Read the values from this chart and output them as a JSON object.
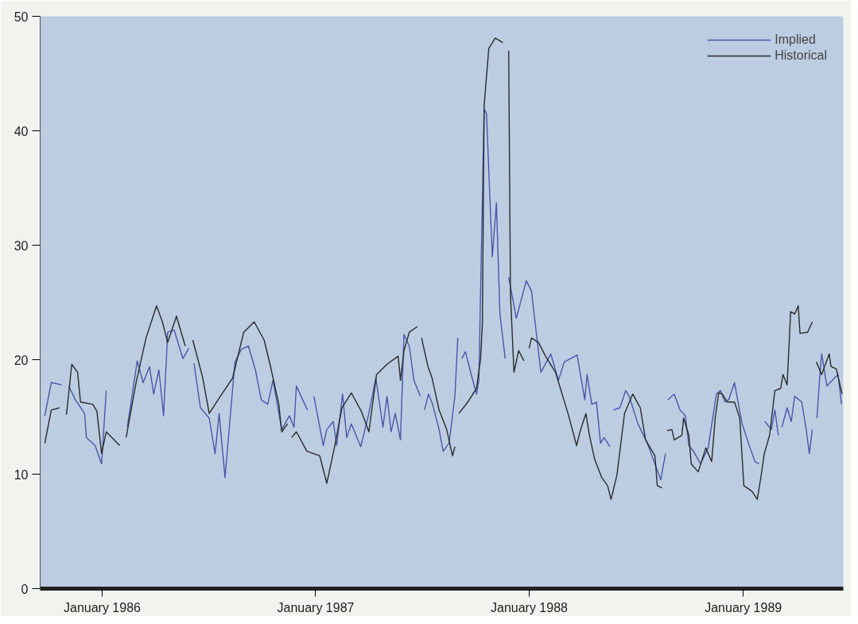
{
  "chart_data": {
    "type": "line",
    "xlim": [
      "1985-09-17",
      "1989-06-21"
    ],
    "ylim": [
      0,
      50
    ],
    "xticks": [
      {
        "value": "1986-01-01",
        "label": "January 1986"
      },
      {
        "value": "1987-01-01",
        "label": "January 1987"
      },
      {
        "value": "1988-01-01",
        "label": "January 1988"
      },
      {
        "value": "1989-01-01",
        "label": "January 1989"
      }
    ],
    "yticks": [
      0,
      10,
      20,
      30,
      40,
      50
    ],
    "grid": false,
    "legend": "top right",
    "marker": "none",
    "line_style": "solid",
    "series": [
      {
        "name": "Implied",
        "color": "#4a55a8",
        "x": [
          "1985-09-25",
          "1985-10-06",
          "1985-10-24",
          "1985-10-27",
          "1985-11-05",
          "1985-11-16",
          "1985-12-02",
          "1985-12-05",
          "1985-12-20",
          "1985-12-31",
          "1986-01-08",
          "1986-01-23",
          "1986-02-13",
          "1986-03-02",
          "1986-03-12",
          "1986-03-23",
          "1986-03-30",
          "1986-04-08",
          "1986-04-16",
          "1986-04-23",
          "1986-05-04",
          "1986-05-19",
          "1986-05-29",
          "1986-06-01",
          "1986-06-07",
          "1986-06-18",
          "1986-07-03",
          "1986-07-13",
          "1986-07-20",
          "1986-07-30",
          "1986-08-16",
          "1986-08-27",
          "1986-09-08",
          "1986-09-20",
          "1986-09-30",
          "1986-10-11",
          "1986-10-20",
          "1986-11-04",
          "1986-11-17",
          "1986-11-25",
          "1986-11-29",
          "1986-12-18",
          "1986-12-25",
          "1986-12-29",
          "1987-01-14",
          "1987-01-20",
          "1987-01-31",
          "1987-02-06",
          "1987-02-16",
          "1987-02-23",
          "1987-03-03",
          "1987-03-19",
          "1987-04-01",
          "1987-04-14",
          "1987-04-26",
          "1987-05-03",
          "1987-05-10",
          "1987-05-17",
          "1987-05-26",
          "1987-06-01",
          "1987-06-10",
          "1987-06-18",
          "1987-06-29",
          "1987-07-01",
          "1987-07-06",
          "1987-07-13",
          "1987-07-20",
          "1987-07-31",
          "1987-08-07",
          "1987-08-17",
          "1987-08-27",
          "1987-09-01",
          "1987-09-03",
          "1987-09-08",
          "1987-09-14",
          "1987-09-24",
          "1987-10-03",
          "1987-10-07",
          "1987-10-16",
          "1987-10-20",
          "1987-10-30",
          "1987-11-06",
          "1987-11-12",
          "1987-11-21",
          "1987-11-26",
          "1987-11-27",
          "1987-12-10",
          "1987-12-27",
          "1988-01-05",
          "1988-01-11",
          "1988-01-21",
          "1988-02-07",
          "1988-02-20",
          "1988-03-01",
          "1988-03-23",
          "1988-04-05",
          "1988-04-09",
          "1988-04-17",
          "1988-04-25",
          "1988-05-02",
          "1988-05-08",
          "1988-05-18",
          "1988-05-22",
          "1988-05-24",
          "1988-06-04",
          "1988-06-14",
          "1988-06-20",
          "1988-07-05",
          "1988-07-21",
          "1988-08-03",
          "1988-08-13",
          "1988-08-21",
          "1988-08-22",
          "1988-08-25",
          "1988-09-05",
          "1988-09-15",
          "1988-09-24",
          "1988-09-30",
          "1988-10-08",
          "1988-10-20",
          "1988-11-02",
          "1988-11-16",
          "1988-11-23",
          "1988-12-01",
          "1988-12-07",
          "1988-12-17",
          "1988-12-30",
          "1989-01-10",
          "1989-01-21",
          "1989-01-28",
          "1989-02-02",
          "1989-02-07",
          "1989-02-18",
          "1989-02-24",
          "1989-03-02",
          "1989-03-04",
          "1989-03-08",
          "1989-03-17",
          "1989-03-24",
          "1989-03-30",
          "1989-04-11",
          "1989-04-18",
          "1989-04-24",
          "1989-04-29",
          "1989-05-02",
          "1989-05-07",
          "1989-05-12",
          "1989-05-15",
          "1989-05-24",
          "1989-06-06",
          "1989-06-12",
          "1989-06-18"
        ],
        "values": [
          15.1,
          18.0,
          17.8,
          null,
          17.7,
          16.5,
          15.3,
          13.2,
          12.5,
          10.9,
          17.3,
          null,
          14.1,
          19.9,
          18.0,
          19.4,
          17.0,
          19.1,
          15.1,
          22.4,
          22.6,
          20.1,
          21.0,
          null,
          19.7,
          15.8,
          14.9,
          11.8,
          15.3,
          9.7,
          19.8,
          20.9,
          21.2,
          19.1,
          16.5,
          16.1,
          18.2,
          13.9,
          15.1,
          14.1,
          17.7,
          15.6,
          null,
          16.8,
          12.5,
          13.9,
          14.6,
          12.5,
          17.0,
          13.2,
          14.4,
          12.4,
          15.1,
          18.4,
          14.1,
          16.8,
          13.7,
          15.3,
          13.0,
          22.2,
          21.2,
          18.2,
          16.8,
          null,
          15.6,
          17.0,
          16.1,
          13.9,
          12.0,
          12.7,
          16.8,
          21.9,
          null,
          20.1,
          20.7,
          18.7,
          17.0,
          18.2,
          41.9,
          41.5,
          29.0,
          33.7,
          24.0,
          20.1,
          null,
          27.2,
          23.6,
          26.9,
          26.0,
          23.3,
          18.9,
          20.5,
          18.2,
          19.8,
          20.4,
          16.5,
          18.7,
          16.1,
          16.3,
          12.7,
          13.2,
          12.4,
          null,
          15.6,
          15.8,
          17.3,
          16.8,
          14.4,
          12.7,
          10.9,
          9.5,
          11.8,
          null,
          16.5,
          17.0,
          15.6,
          15.1,
          12.5,
          12.0,
          10.9,
          12.3,
          17.0,
          17.3,
          16.3,
          16.5,
          18.0,
          14.4,
          12.7,
          11.1,
          10.9,
          null,
          14.6,
          13.9,
          15.6,
          13.4,
          null,
          14.1,
          15.8,
          14.6,
          16.8,
          16.3,
          14.1,
          11.8,
          13.9,
          null,
          14.9,
          18.7,
          20.5,
          17.7,
          18.4,
          18.7,
          16.1
        ]
      },
      {
        "name": "Historical",
        "color": "#2a2a2a",
        "x": [
          "1985-09-25",
          "1985-10-06",
          "1985-10-20",
          "1985-10-27",
          "1985-11-01",
          "1985-11-10",
          "1985-11-20",
          "1985-11-25",
          "1985-12-16",
          "1985-12-23",
          "1985-12-31",
          "1986-01-08",
          "1986-01-31",
          "1986-02-07",
          "1986-02-11",
          "1986-02-28",
          "1986-03-17",
          "1986-04-04",
          "1986-04-14",
          "1986-04-23",
          "1986-05-08",
          "1986-05-23",
          "1986-05-31",
          "1986-06-05",
          "1986-06-22",
          "1986-07-03",
          "1986-07-22",
          "1986-08-12",
          "1986-08-31",
          "1986-09-18",
          "1986-10-05",
          "1986-10-15",
          "1986-10-30",
          "1986-11-04",
          "1986-11-14",
          "1986-11-18",
          "1986-11-21",
          "1986-11-29",
          "1986-12-17",
          "1987-01-08",
          "1987-01-20",
          "1987-02-02",
          "1987-02-15",
          "1987-03-03",
          "1987-03-20",
          "1987-04-02",
          "1987-04-15",
          "1987-05-03",
          "1987-05-22",
          "1987-05-26",
          "1987-06-01",
          "1987-06-10",
          "1987-06-24",
          "1987-06-29",
          "1987-07-01",
          "1987-07-12",
          "1987-07-19",
          "1987-07-31",
          "1987-08-13",
          "1987-08-23",
          "1987-08-27",
          "1987-08-30",
          "1987-09-03",
          "1987-09-18",
          "1987-10-03",
          "1987-10-10",
          "1987-10-13",
          "1987-10-16",
          "1987-10-24",
          "1987-11-04",
          "1987-11-17",
          "1987-11-22",
          "1987-11-27",
          "1987-11-30",
          "1987-12-06",
          "1987-12-14",
          "1987-12-23",
          "1987-12-28",
          "1988-01-01",
          "1988-01-05",
          "1988-01-17",
          "1988-01-29",
          "1988-02-15",
          "1988-03-08",
          "1988-03-22",
          "1988-03-29",
          "1988-04-07",
          "1988-04-13",
          "1988-04-22",
          "1988-05-04",
          "1988-05-14",
          "1988-05-20",
          "1988-05-30",
          "1988-06-12",
          "1988-06-26",
          "1988-07-09",
          "1988-07-18",
          "1988-08-03",
          "1988-08-07",
          "1988-08-15",
          "1988-08-19",
          "1988-08-24",
          "1988-09-01",
          "1988-09-05",
          "1988-09-18",
          "1988-09-21",
          "1988-09-30",
          "1988-10-04",
          "1988-10-16",
          "1988-10-29",
          "1988-11-08",
          "1988-11-14",
          "1988-11-20",
          "1988-11-26",
          "1988-12-05",
          "1988-12-17",
          "1988-12-26",
          "1989-01-02",
          "1989-01-16",
          "1989-01-25",
          "1989-01-31",
          "1989-02-06",
          "1989-02-15",
          "1989-02-24",
          "1989-03-06",
          "1989-03-10",
          "1989-03-17",
          "1989-03-23",
          "1989-03-30",
          "1989-04-05",
          "1989-04-08",
          "1989-04-21",
          "1989-04-29",
          "1989-05-02",
          "1989-05-06",
          "1989-05-15",
          "1989-05-28",
          "1989-05-31",
          "1989-06-09",
          "1989-06-19"
        ],
        "values": [
          12.7,
          15.6,
          15.8,
          null,
          15.2,
          19.6,
          18.9,
          16.3,
          16.1,
          15.5,
          11.8,
          13.7,
          12.5,
          null,
          13.2,
          18.0,
          21.9,
          24.7,
          23.3,
          21.5,
          23.8,
          21.2,
          null,
          21.7,
          18.4,
          15.3,
          16.8,
          18.4,
          22.4,
          23.3,
          21.7,
          19.6,
          16.1,
          13.7,
          14.4,
          null,
          13.2,
          13.7,
          12.0,
          11.6,
          9.2,
          12.3,
          15.8,
          17.1,
          15.5,
          13.7,
          18.7,
          19.6,
          20.3,
          18.2,
          20.8,
          22.4,
          22.9,
          null,
          21.9,
          19.4,
          18.4,
          15.6,
          13.9,
          11.6,
          12.4,
          null,
          15.3,
          16.3,
          17.5,
          20.1,
          23.1,
          42.2,
          47.2,
          48.1,
          47.7,
          null,
          47.0,
          25.7,
          18.9,
          20.8,
          19.9,
          null,
          21.0,
          21.9,
          21.5,
          20.3,
          18.9,
          15.2,
          12.5,
          13.9,
          15.3,
          13.4,
          11.3,
          9.7,
          9.0,
          7.8,
          9.9,
          15.3,
          17.0,
          15.8,
          13.0,
          11.6,
          9.0,
          8.8,
          null,
          13.8,
          13.9,
          13.0,
          13.4,
          14.9,
          13.4,
          10.9,
          10.2,
          12.3,
          11.1,
          14.9,
          17.1,
          17.0,
          16.3,
          16.3,
          14.9,
          9.0,
          8.5,
          7.8,
          9.7,
          11.8,
          13.4,
          17.3,
          17.5,
          18.7,
          17.8,
          24.2,
          24.0,
          24.7,
          22.3,
          22.4,
          23.3,
          null,
          19.8,
          18.7,
          20.5,
          19.4,
          19.2,
          17.0
        ]
      }
    ]
  }
}
